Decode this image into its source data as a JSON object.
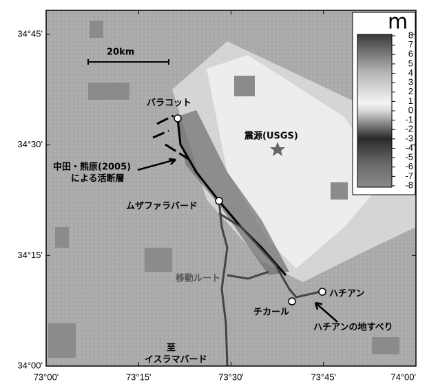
{
  "map": {
    "unit": "m",
    "scale_bar": "20km",
    "colorbar": {
      "ticks": [
        8,
        7,
        6,
        5,
        4,
        3,
        2,
        1,
        0,
        -1,
        -2,
        -3,
        -4,
        -5,
        -6,
        -7,
        -8
      ]
    },
    "lon_ticks": [
      "73°00'",
      "73°15'",
      "73°30'",
      "73°45'",
      "74°00'"
    ],
    "lat_ticks": [
      "34°45'",
      "34°30'",
      "34°15'",
      "34°00'"
    ],
    "labels": {
      "balakot": "バラコット",
      "epicenter": "震源(USGS)",
      "fault_1": "中田・熊原(2005)",
      "fault_2": "による活断層",
      "muzaffarabad": "ムザファラバード",
      "route": "移動ルート",
      "hattian": "ハチアン",
      "chikar": "チカール",
      "landslide": "ハチアンの地すべり",
      "to": "至",
      "islamabad": "イスラマバード"
    }
  }
}
